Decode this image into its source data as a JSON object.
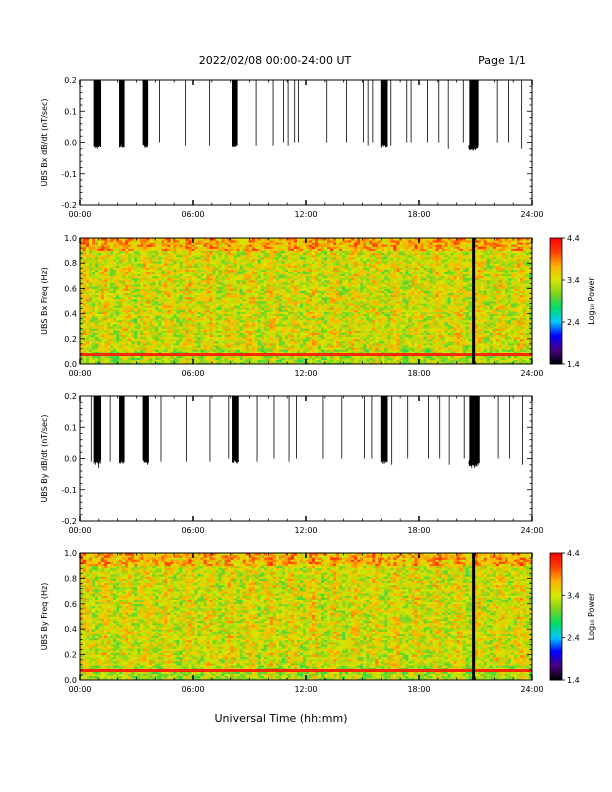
{
  "header": {
    "date_range": "2022/02/08  00:00-24:00 UT",
    "page": "Page 1/1"
  },
  "colors": {
    "background": "#ffffff",
    "axis": "#000000",
    "event_line": "#000000",
    "colormap": [
      "#000000",
      "#4b0082",
      "#0000ff",
      "#00c8ff",
      "#00dd66",
      "#7cd320",
      "#d8e800",
      "#ffb000",
      "#ff4000",
      "#ff0000"
    ]
  },
  "chart_data": [
    {
      "type": "line",
      "name": "panel-bx-ddt",
      "title": "",
      "xlabel": "",
      "ylabel": "UBS Bx dB/dt (nT/sec)",
      "xlim_hours": [
        0,
        24
      ],
      "ylim": [
        -0.2,
        0.2
      ],
      "x_tick_labels": [
        "00:00",
        "06:00",
        "12:00",
        "18:00",
        "24:00"
      ],
      "y_tick_labels": [
        "0.2",
        "0.1",
        "0.0",
        "-0.1",
        "-0.2"
      ],
      "y_tick_values": [
        0.2,
        0.1,
        0.0,
        -0.1,
        -0.2
      ],
      "baseline": 0.0,
      "spike_events": [
        {
          "t": 0.82,
          "min": -0.01
        },
        {
          "t": 0.92,
          "min": -0.02
        },
        {
          "t": 1.05,
          "min": -0.01
        },
        {
          "t": 2.18,
          "min": -0.01
        },
        {
          "t": 2.3,
          "min": -0.01
        },
        {
          "t": 3.4,
          "min": -0.01
        },
        {
          "t": 3.52,
          "min": -0.01
        },
        {
          "t": 4.22,
          "min": -0.0
        },
        {
          "t": 5.6,
          "min": -0.01
        },
        {
          "t": 6.88,
          "min": -0.01
        },
        {
          "t": 8.1,
          "min": -0.01
        },
        {
          "t": 8.3,
          "min": 0.0
        },
        {
          "t": 9.35,
          "min": -0.01
        },
        {
          "t": 10.25,
          "min": -0.01
        },
        {
          "t": 10.8,
          "min": 0.0
        },
        {
          "t": 11.05,
          "min": -0.01
        },
        {
          "t": 11.4,
          "min": 0.0
        },
        {
          "t": 11.6,
          "min": 0.0
        },
        {
          "t": 13.1,
          "min": 0.0
        },
        {
          "t": 14.15,
          "min": 0.0
        },
        {
          "t": 15.05,
          "min": 0.0
        },
        {
          "t": 15.3,
          "min": -0.01
        },
        {
          "t": 15.55,
          "min": 0.0
        },
        {
          "t": 16.05,
          "min": 0.0
        },
        {
          "t": 16.5,
          "min": -0.01
        },
        {
          "t": 17.35,
          "min": 0.0
        },
        {
          "t": 17.58,
          "min": 0.0
        },
        {
          "t": 18.45,
          "min": 0.0
        },
        {
          "t": 19.05,
          "min": 0.0
        },
        {
          "t": 19.55,
          "min": -0.02
        },
        {
          "t": 20.35,
          "min": 0.0
        },
        {
          "t": 20.75,
          "min": -0.02
        },
        {
          "t": 20.9,
          "min": -0.02
        },
        {
          "t": 21.1,
          "min": -0.01
        },
        {
          "t": 22.15,
          "min": 0.0
        },
        {
          "t": 22.75,
          "min": 0.0
        },
        {
          "t": 23.45,
          "min": -0.02
        }
      ],
      "burst_intervals": [
        [
          0.75,
          1.1
        ],
        [
          2.1,
          2.35
        ],
        [
          3.35,
          3.6
        ],
        [
          8.1,
          8.35
        ],
        [
          16.0,
          16.3
        ],
        [
          20.7,
          21.15
        ]
      ]
    },
    {
      "type": "heatmap",
      "name": "panel-bx-spectrogram",
      "title": "",
      "xlabel": "",
      "ylabel": "UBS Bx Freq (Hz)",
      "xlim_hours": [
        0,
        24
      ],
      "ylim": [
        0.0,
        1.0
      ],
      "x_tick_labels": [
        "00:00",
        "06:00",
        "12:00",
        "18:00",
        "24:00"
      ],
      "y_tick_labels": [
        "1.0",
        "0.8",
        "0.6",
        "0.4",
        "0.2",
        "0.0"
      ],
      "y_tick_values": [
        1.0,
        0.8,
        0.6,
        0.4,
        0.2,
        0.0
      ],
      "colorbar": {
        "label": "Log₁₀ Power",
        "range": [
          1.4,
          4.4
        ],
        "tick_labels": [
          "4.4",
          "3.4",
          "2.4",
          "1.4"
        ],
        "tick_values": [
          4.4,
          3.4,
          2.4,
          1.4
        ]
      },
      "typical_power": 3.4,
      "low_freq_band_hz": 0.075,
      "data_gap_hour": 20.9
    },
    {
      "type": "line",
      "name": "panel-by-ddt",
      "title": "",
      "xlabel": "",
      "ylabel": "UBS By dB/dt (nT/sec)",
      "xlim_hours": [
        0,
        24
      ],
      "ylim": [
        -0.2,
        0.2
      ],
      "x_tick_labels": [
        "00:00",
        "06:00",
        "12:00",
        "18:00",
        "24:00"
      ],
      "y_tick_labels": [
        "0.2",
        "0.1",
        "0.0",
        "-0.1",
        "-0.2"
      ],
      "y_tick_values": [
        0.2,
        0.1,
        0.0,
        -0.1,
        -0.2
      ],
      "baseline": 0.0,
      "spike_events": [
        {
          "t": 0.6,
          "min": -0.01
        },
        {
          "t": 0.82,
          "min": -0.02
        },
        {
          "t": 0.98,
          "min": -0.03
        },
        {
          "t": 1.6,
          "min": -0.01
        },
        {
          "t": 2.2,
          "min": -0.01
        },
        {
          "t": 2.32,
          "min": -0.01
        },
        {
          "t": 3.45,
          "min": -0.01
        },
        {
          "t": 3.58,
          "min": -0.02
        },
        {
          "t": 4.3,
          "min": -0.01
        },
        {
          "t": 5.65,
          "min": -0.01
        },
        {
          "t": 6.9,
          "min": -0.01
        },
        {
          "t": 7.9,
          "min": 0.0
        },
        {
          "t": 8.15,
          "min": -0.01
        },
        {
          "t": 8.35,
          "min": 0.0
        },
        {
          "t": 9.4,
          "min": -0.01
        },
        {
          "t": 10.3,
          "min": 0.0
        },
        {
          "t": 11.1,
          "min": -0.01
        },
        {
          "t": 11.5,
          "min": 0.0
        },
        {
          "t": 12.9,
          "min": 0.0
        },
        {
          "t": 13.9,
          "min": 0.0
        },
        {
          "t": 15.1,
          "min": 0.0
        },
        {
          "t": 15.5,
          "min": 0.0
        },
        {
          "t": 16.05,
          "min": -0.01
        },
        {
          "t": 16.55,
          "min": -0.02
        },
        {
          "t": 17.4,
          "min": 0.0
        },
        {
          "t": 18.5,
          "min": 0.0
        },
        {
          "t": 19.1,
          "min": 0.0
        },
        {
          "t": 19.6,
          "min": -0.02
        },
        {
          "t": 20.4,
          "min": 0.0
        },
        {
          "t": 20.8,
          "min": -0.03
        },
        {
          "t": 20.95,
          "min": -0.03
        },
        {
          "t": 21.15,
          "min": -0.02
        },
        {
          "t": 22.2,
          "min": 0.0
        },
        {
          "t": 22.8,
          "min": 0.0
        },
        {
          "t": 23.5,
          "min": -0.02
        }
      ],
      "burst_intervals": [
        [
          0.75,
          1.1
        ],
        [
          2.1,
          2.35
        ],
        [
          3.35,
          3.65
        ],
        [
          8.1,
          8.4
        ],
        [
          16.0,
          16.3
        ],
        [
          20.7,
          21.2
        ]
      ]
    },
    {
      "type": "heatmap",
      "name": "panel-by-spectrogram",
      "title": "",
      "xlabel": "Universal Time (hh:mm)",
      "ylabel": "UBS By Freq (Hz)",
      "xlim_hours": [
        0,
        24
      ],
      "ylim": [
        0.0,
        1.0
      ],
      "x_tick_labels": [
        "00:00",
        "06:00",
        "12:00",
        "18:00",
        "24:00"
      ],
      "y_tick_labels": [
        "1.0",
        "0.8",
        "0.6",
        "0.4",
        "0.2",
        "0.0"
      ],
      "y_tick_values": [
        1.0,
        0.8,
        0.6,
        0.4,
        0.2,
        0.0
      ],
      "colorbar": {
        "label": "Log₁₀ Power",
        "range": [
          1.4,
          4.4
        ],
        "tick_labels": [
          "4.4",
          "3.4",
          "2.4",
          "1.4"
        ],
        "tick_values": [
          4.4,
          3.4,
          2.4,
          1.4
        ]
      },
      "typical_power": 3.4,
      "low_freq_band_hz": 0.075,
      "data_gap_hour": 20.9
    }
  ]
}
